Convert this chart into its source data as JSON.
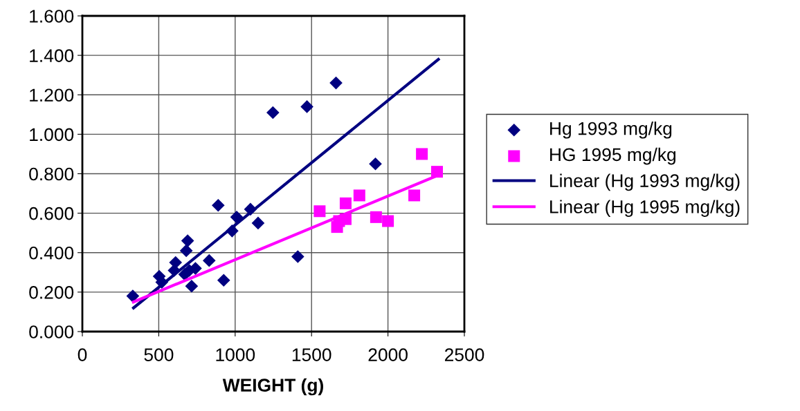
{
  "chart_data": {
    "type": "scatter",
    "xlabel": "WEIGHT (g)",
    "series": [
      {
        "name": "Hg 1993 mg/kg",
        "color": "#000080",
        "marker": "diamond",
        "x": [
          330,
          503,
          520,
          601,
          610,
          670,
          680,
          689,
          700,
          715,
          740,
          830,
          889,
          925,
          980,
          1010,
          1100,
          1150,
          1247,
          1410,
          1470,
          1660,
          1918
        ],
        "values": [
          0.18,
          0.28,
          0.25,
          0.31,
          0.35,
          0.29,
          0.41,
          0.46,
          0.31,
          0.23,
          0.32,
          0.36,
          0.64,
          0.26,
          0.51,
          0.58,
          0.62,
          0.55,
          1.11,
          0.38,
          1.14,
          1.26,
          0.85
        ]
      },
      {
        "name": "HG 1995 mg/kg",
        "color": "#ff00ff",
        "marker": "square",
        "x": [
          1553,
          1667,
          1680,
          1723,
          1723,
          1813,
          1922,
          2000,
          2172,
          2222,
          2321
        ],
        "values": [
          0.61,
          0.53,
          0.56,
          0.65,
          0.57,
          0.69,
          0.58,
          0.56,
          0.69,
          0.9,
          0.81
        ]
      },
      {
        "name": "Linear (Hg 1993 mg/kg)",
        "type": "line",
        "color": "#000080",
        "marker": "none",
        "x": [
          335,
          2330
        ],
        "values": [
          0.12,
          1.38
        ]
      },
      {
        "name": "Linear (Hg 1995 mg/kg)",
        "type": "line",
        "color": "#ff00ff",
        "marker": "none",
        "x": [
          334,
          2321
        ],
        "values": [
          0.15,
          0.79
        ]
      }
    ],
    "xlim": [
      0,
      2500
    ],
    "xticks": [
      0,
      500,
      1000,
      1500,
      2000,
      2500
    ],
    "ylim": [
      0,
      1.6
    ],
    "yticks": [
      {
        "value": 0,
        "label": "0.000"
      },
      {
        "value": 0.2,
        "label": "0.200"
      },
      {
        "value": 0.4,
        "label": "0.400"
      },
      {
        "value": 0.6,
        "label": "0.600"
      },
      {
        "value": 0.8,
        "label": "0.800"
      },
      {
        "value": 1.0,
        "label": "1.000"
      },
      {
        "value": 1.2,
        "label": "1.200"
      },
      {
        "value": 1.4,
        "label": "1.400"
      },
      {
        "value": 1.6,
        "label": "1.600"
      }
    ],
    "grid": true,
    "legend": "right"
  }
}
